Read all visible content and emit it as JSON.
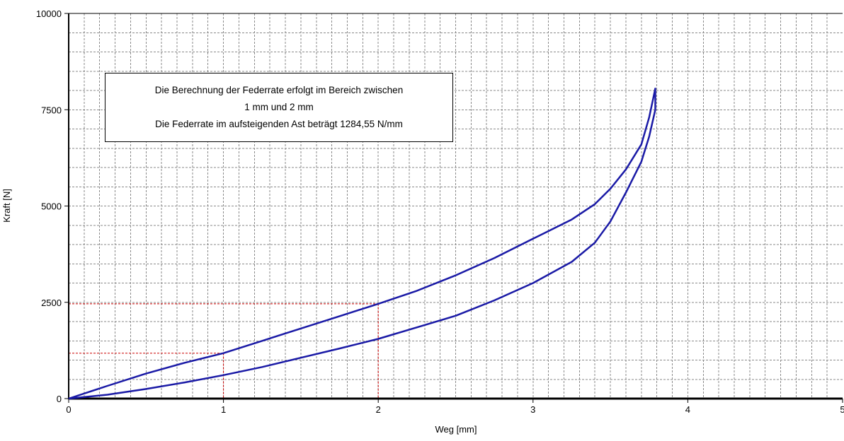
{
  "chart_data": {
    "type": "line",
    "title": "",
    "xlabel": "Weg [mm]",
    "ylabel": "Kraft [N]",
    "xlim": [
      0,
      5
    ],
    "ylim": [
      0,
      10000
    ],
    "x_ticks": [
      "0",
      "1",
      "2",
      "3",
      "4",
      "5"
    ],
    "y_ticks": [
      "0",
      "2500",
      "5000",
      "7500",
      "10000"
    ],
    "grid": true,
    "legend": "none",
    "series": [
      {
        "color": "#1a1aa6",
        "points": [
          [
            0,
            0
          ],
          [
            0.25,
            330
          ],
          [
            0.5,
            650
          ],
          [
            0.75,
            930
          ],
          [
            1.0,
            1180
          ],
          [
            1.25,
            1500
          ],
          [
            1.5,
            1820
          ],
          [
            1.75,
            2140
          ],
          [
            2.0,
            2460
          ],
          [
            2.25,
            2800
          ],
          [
            2.5,
            3200
          ],
          [
            2.75,
            3650
          ],
          [
            3.0,
            4150
          ],
          [
            3.25,
            4650
          ],
          [
            3.4,
            5050
          ],
          [
            3.5,
            5450
          ],
          [
            3.6,
            5950
          ],
          [
            3.7,
            6600
          ],
          [
            3.75,
            7300
          ],
          [
            3.79,
            8050
          ],
          [
            3.79,
            7500
          ],
          [
            3.75,
            6800
          ],
          [
            3.7,
            6150
          ],
          [
            3.6,
            5350
          ],
          [
            3.5,
            4600
          ],
          [
            3.4,
            4050
          ],
          [
            3.25,
            3550
          ],
          [
            3.0,
            3000
          ],
          [
            2.75,
            2550
          ],
          [
            2.5,
            2150
          ],
          [
            2.25,
            1850
          ],
          [
            2.0,
            1550
          ],
          [
            1.75,
            1300
          ],
          [
            1.5,
            1060
          ],
          [
            1.25,
            820
          ],
          [
            1.0,
            610
          ],
          [
            0.75,
            420
          ],
          [
            0.5,
            250
          ],
          [
            0.25,
            100
          ],
          [
            0,
            0
          ]
        ]
      }
    ],
    "reference_lines": [
      {
        "x": 1,
        "y": 1180,
        "color": "#cc0000"
      },
      {
        "x": 2,
        "y": 2460,
        "color": "#cc0000"
      }
    ],
    "annotation": [
      "Die Berechnung der Federrate erfolgt im Bereich zwischen",
      "1 mm und 2 mm",
      "Die Federrate im aufsteigenden Ast beträgt 1284,55 N/mm"
    ]
  }
}
